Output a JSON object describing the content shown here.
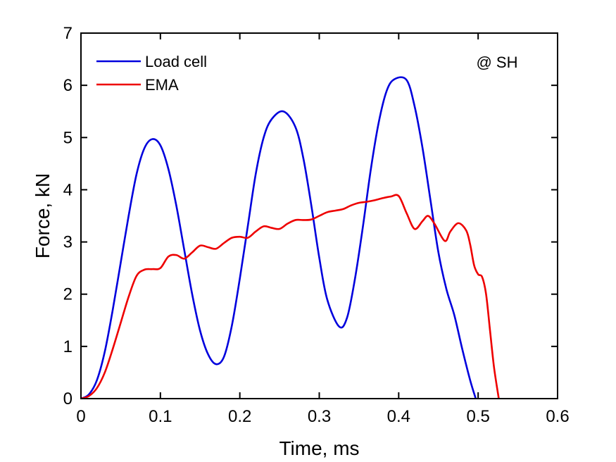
{
  "chart_data": {
    "type": "line",
    "xlabel": "Time, ms",
    "ylabel": "Force, kN",
    "xlim": [
      0,
      0.6
    ],
    "ylim": [
      0,
      7
    ],
    "xticks": [
      0,
      0.1,
      0.2,
      0.3,
      0.4,
      0.5,
      0.6
    ],
    "xtick_labels": [
      "0",
      "0.1",
      "0.2",
      "0.3",
      "0.4",
      "0.5",
      "0.6"
    ],
    "yticks": [
      0,
      1,
      2,
      3,
      4,
      5,
      6,
      7
    ],
    "ytick_labels": [
      "0",
      "1",
      "2",
      "3",
      "4",
      "5",
      "6",
      "7"
    ],
    "grid": false,
    "legend_position": "top-left",
    "annotation": "@ SH",
    "series": [
      {
        "name": "Load cell",
        "color": "#0000dd",
        "x": [
          0,
          0.01,
          0.02,
          0.03,
          0.04,
          0.05,
          0.06,
          0.07,
          0.08,
          0.09,
          0.1,
          0.11,
          0.12,
          0.13,
          0.14,
          0.15,
          0.16,
          0.17,
          0.18,
          0.19,
          0.2,
          0.21,
          0.22,
          0.23,
          0.24,
          0.255,
          0.27,
          0.28,
          0.29,
          0.3,
          0.31,
          0.325,
          0.335,
          0.345,
          0.355,
          0.365,
          0.375,
          0.385,
          0.395,
          0.41,
          0.42,
          0.43,
          0.44,
          0.45,
          0.46,
          0.47,
          0.48,
          0.49,
          0.497
        ],
        "y": [
          0,
          0.08,
          0.35,
          0.9,
          1.7,
          2.6,
          3.5,
          4.3,
          4.8,
          4.97,
          4.85,
          4.4,
          3.7,
          2.85,
          2.0,
          1.3,
          0.85,
          0.66,
          0.8,
          1.4,
          2.3,
          3.3,
          4.3,
          5.0,
          5.35,
          5.5,
          5.2,
          4.6,
          3.7,
          2.7,
          1.9,
          1.38,
          1.55,
          2.3,
          3.3,
          4.4,
          5.3,
          5.9,
          6.12,
          6.1,
          5.6,
          4.8,
          3.8,
          2.8,
          2.1,
          1.6,
          0.95,
          0.35,
          0
        ]
      },
      {
        "name": "EMA",
        "color": "#ee0000",
        "x": [
          0,
          0.01,
          0.02,
          0.03,
          0.04,
          0.05,
          0.06,
          0.07,
          0.08,
          0.09,
          0.1,
          0.11,
          0.12,
          0.13,
          0.14,
          0.15,
          0.16,
          0.17,
          0.18,
          0.19,
          0.2,
          0.21,
          0.22,
          0.23,
          0.24,
          0.25,
          0.26,
          0.27,
          0.28,
          0.29,
          0.3,
          0.31,
          0.32,
          0.33,
          0.34,
          0.35,
          0.36,
          0.37,
          0.38,
          0.39,
          0.4,
          0.41,
          0.42,
          0.43,
          0.437,
          0.445,
          0.458,
          0.465,
          0.475,
          0.485,
          0.49,
          0.495,
          0.5,
          0.505,
          0.51,
          0.515,
          0.52,
          0.526
        ],
        "y": [
          0,
          0.05,
          0.2,
          0.5,
          0.95,
          1.45,
          1.95,
          2.35,
          2.47,
          2.48,
          2.5,
          2.72,
          2.75,
          2.68,
          2.8,
          2.93,
          2.9,
          2.87,
          2.98,
          3.08,
          3.1,
          3.08,
          3.2,
          3.3,
          3.27,
          3.25,
          3.35,
          3.42,
          3.42,
          3.43,
          3.5,
          3.57,
          3.6,
          3.63,
          3.7,
          3.75,
          3.77,
          3.8,
          3.84,
          3.87,
          3.88,
          3.55,
          3.25,
          3.4,
          3.5,
          3.35,
          3.02,
          3.2,
          3.36,
          3.22,
          2.95,
          2.55,
          2.38,
          2.33,
          2.0,
          1.3,
          0.6,
          0
        ]
      }
    ]
  }
}
